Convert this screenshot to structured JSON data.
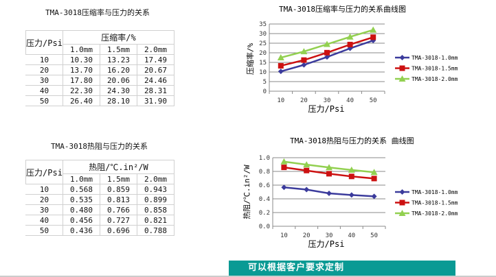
{
  "tables": [
    {
      "title": "TMA-3018压缩率与压力的关系",
      "row_header": "压力/Psi",
      "group_header": "压缩率/%",
      "columns": [
        "1.0mm",
        "1.5mm",
        "2.0mm"
      ],
      "rows": [
        [
          "10",
          "10.30",
          "13.23",
          "17.49"
        ],
        [
          "20",
          "13.70",
          "16.20",
          "20.67"
        ],
        [
          "30",
          "17.80",
          "20.06",
          "24.46"
        ],
        [
          "40",
          "22.30",
          "24.30",
          "28.31"
        ],
        [
          "50",
          "26.40",
          "28.10",
          "31.90"
        ]
      ]
    },
    {
      "title": "TMA-3018热阻与压力的关系",
      "row_header": "压力/Psi",
      "group_header": "热阻/℃.in²/W",
      "columns": [
        "1.0mm",
        "1.5mm",
        "2.0mm"
      ],
      "rows": [
        [
          "10",
          "0.568",
          "0.859",
          "0.943"
        ],
        [
          "20",
          "0.535",
          "0.813",
          "0.899"
        ],
        [
          "30",
          "0.480",
          "0.766",
          "0.858"
        ],
        [
          "40",
          "0.456",
          "0.727",
          "0.821"
        ],
        [
          "50",
          "0.436",
          "0.696",
          "0.788"
        ]
      ]
    }
  ],
  "chart_data": [
    {
      "type": "line",
      "title": "TMA-3018压缩率与压力的关系曲线图",
      "xlabel": "压力/Psi",
      "ylabel": "压缩率/%",
      "categories": [
        "10",
        "20",
        "30",
        "40",
        "50"
      ],
      "ylim": [
        0,
        35
      ],
      "yticks": [
        "0",
        "5",
        "10",
        "15",
        "20",
        "25",
        "30",
        "35"
      ],
      "grid": true,
      "legend": "right",
      "series": [
        {
          "name": "TMA-3018-1.0mm",
          "values": [
            10.3,
            13.7,
            17.8,
            22.3,
            26.4
          ],
          "color": "#3b3b9c",
          "marker": "diamond"
        },
        {
          "name": "TMA-3018-1.5mm",
          "values": [
            13.23,
            16.2,
            20.06,
            24.3,
            28.1
          ],
          "color": "#cc1111",
          "marker": "square"
        },
        {
          "name": "TMA-3018-2.0mm",
          "values": [
            17.49,
            20.67,
            24.46,
            28.31,
            31.9
          ],
          "color": "#92d050",
          "marker": "triangle"
        }
      ]
    },
    {
      "type": "line",
      "title": "TMA-3018热阻与压力的关系 曲线图",
      "xlabel": "压力/Psi",
      "ylabel": "热阻/℃.in²/W",
      "categories": [
        "10",
        "20",
        "30",
        "40",
        "50"
      ],
      "ylim": [
        0,
        1.0
      ],
      "yticks": [
        "0.0",
        "0.2",
        "0.4",
        "0.6",
        "0.8",
        "1.0"
      ],
      "grid": true,
      "legend": "right",
      "series": [
        {
          "name": "TMA-3018-1.0mm",
          "values": [
            0.568,
            0.535,
            0.48,
            0.456,
            0.436
          ],
          "color": "#3b3b9c",
          "marker": "diamond"
        },
        {
          "name": "TMA-3018-1.5mm",
          "values": [
            0.859,
            0.813,
            0.766,
            0.727,
            0.696
          ],
          "color": "#cc1111",
          "marker": "square"
        },
        {
          "name": "TMA-3018-2.0mm",
          "values": [
            0.943,
            0.899,
            0.858,
            0.821,
            0.788
          ],
          "color": "#92d050",
          "marker": "triangle"
        }
      ]
    }
  ],
  "banner": "可以根据客户要求定制"
}
